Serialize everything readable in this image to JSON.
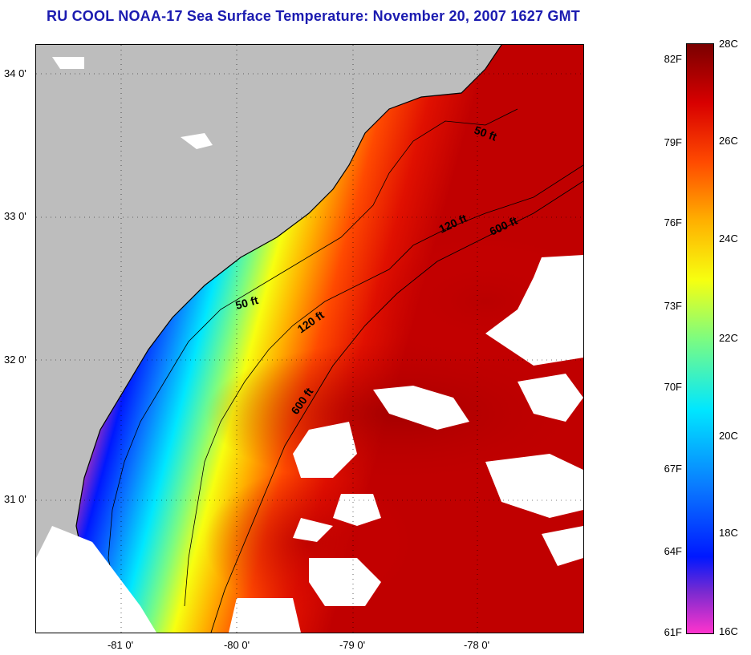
{
  "title": "RU COOL  NOAA-17  Sea Surface Temperature:  November 20, 2007 1627 GMT",
  "map": {
    "lat_labels": [
      "34 0'",
      "33 0'",
      "32 0'",
      "31 0'"
    ],
    "lon_labels": [
      "-81 0'",
      "-80 0'",
      "-79 0'",
      "-78 0'"
    ],
    "contour_labels": [
      "50 ft",
      "50 ft",
      "120 ft",
      "120 ft",
      "600 ft",
      "600 ft"
    ],
    "colors": {
      "land": "#bdbdbd",
      "cloud": "#ffffff",
      "coastline": "#000000"
    }
  },
  "colorbar": {
    "fahrenheit_labels": [
      "82F",
      "79F",
      "76F",
      "73F",
      "70F",
      "67F",
      "64F",
      "61F"
    ],
    "celsius_labels": [
      "28C",
      "26C",
      "24C",
      "22C",
      "20C",
      "18C",
      "16C"
    ],
    "range_c": [
      16,
      28
    ],
    "colors": [
      "#ff33cc",
      "#7a2ad0",
      "#0018ff",
      "#0a7bff",
      "#00e7ff",
      "#7dfc80",
      "#f7ff10",
      "#ffb000",
      "#ff4a00",
      "#d80000",
      "#7a0000"
    ]
  }
}
